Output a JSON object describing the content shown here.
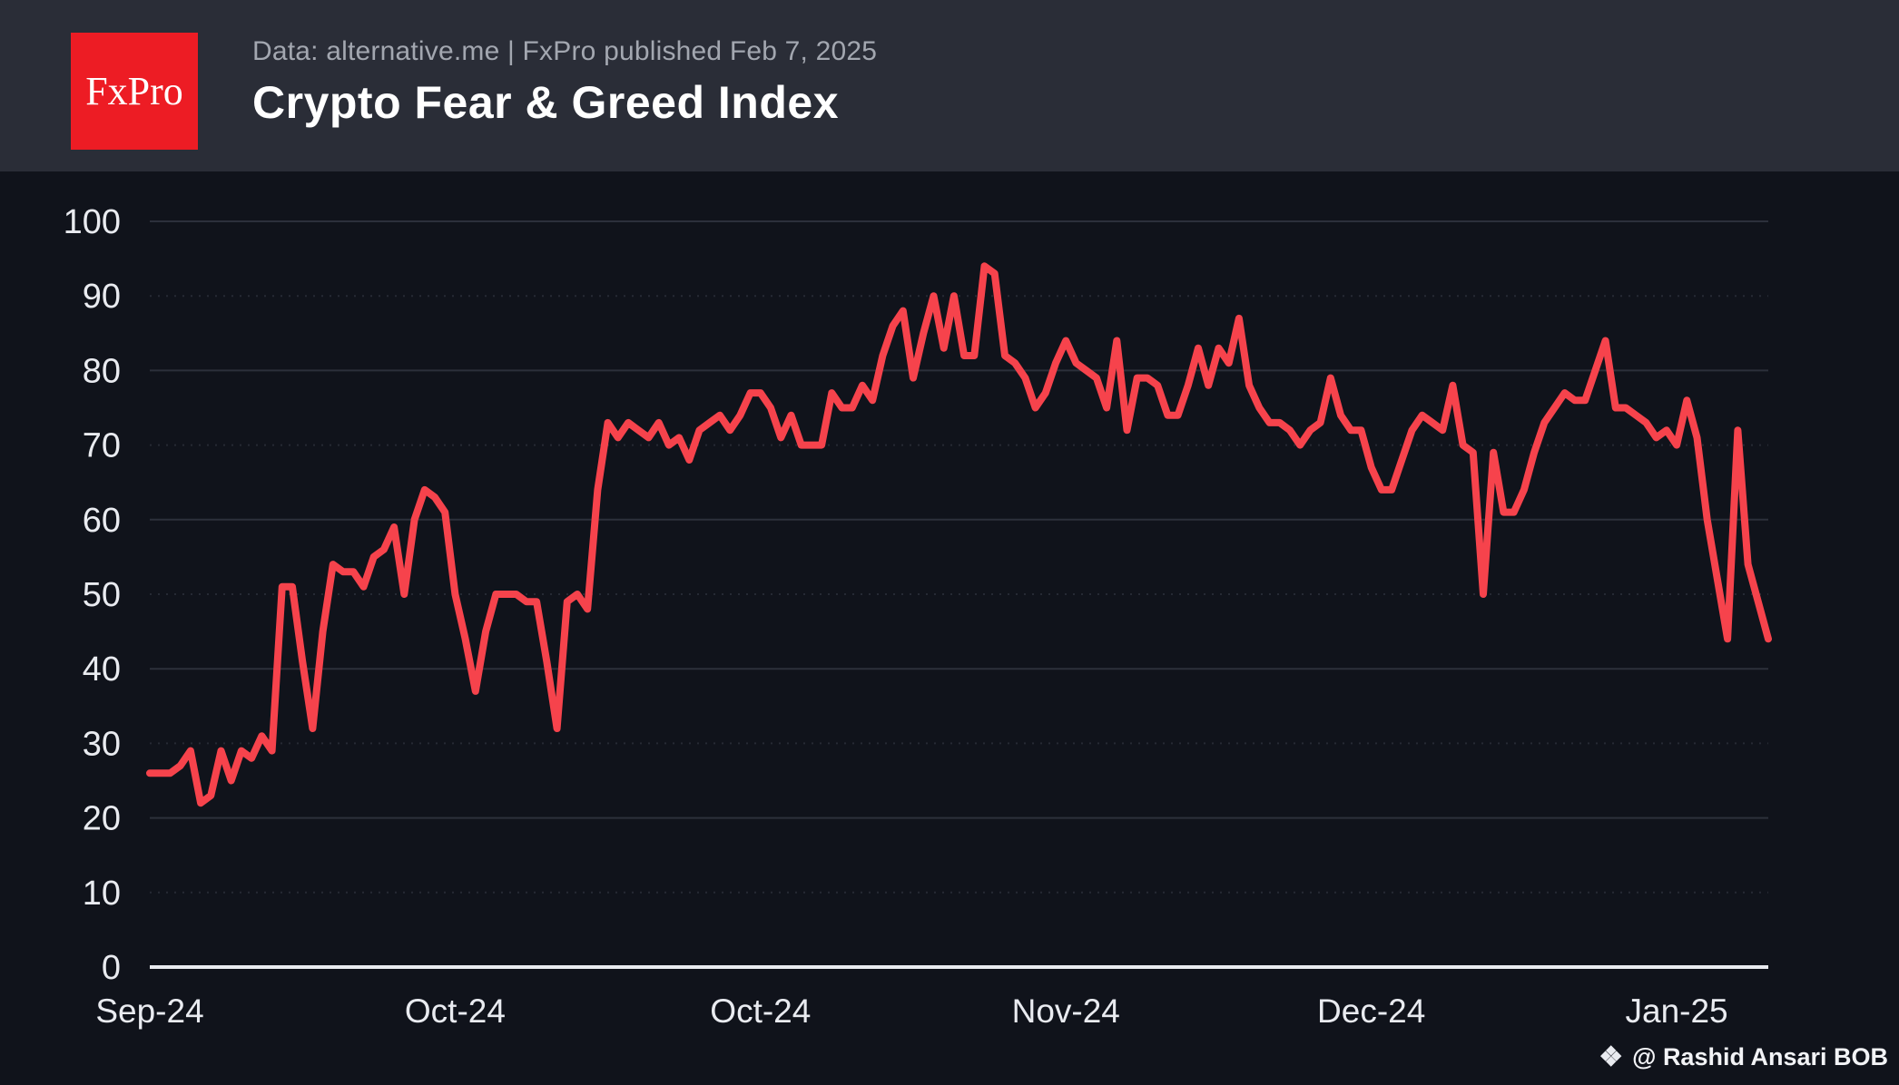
{
  "header": {
    "logo_text": "FxPro",
    "meta_line": "Data: alternative.me  |  FxPro published Feb 7, 2025",
    "title": "Crypto Fear & Greed Index"
  },
  "watermark": {
    "icon_name": "binance-diamond-icon",
    "glyph": "❖",
    "text": "@ Rashid Ansari BOB"
  },
  "colors": {
    "header_bg": "#2a2d37",
    "chart_bg": "#10131b",
    "logo_red": "#ed1c24",
    "line_red": "#f6434c",
    "grid_major": "#2c303b",
    "grid_minor": "#262a34",
    "axis_line": "#e9ebf0",
    "tick_text": "#e9ebf0",
    "meta_text": "#a3a7b0",
    "title_text": "#ffffff"
  },
  "chart_data": {
    "type": "line",
    "title": "Crypto Fear & Greed Index",
    "x_start_date": "2024-09-01",
    "x_end_date": "2025-02-07",
    "frequency": "daily",
    "ylim": [
      0,
      100
    ],
    "y_ticks": [
      0,
      10,
      20,
      30,
      40,
      50,
      60,
      70,
      80,
      90,
      100
    ],
    "grid": "horizontal",
    "legend": "none",
    "x_tick_labels": [
      {
        "day_index": 0,
        "label": "Sep-24"
      },
      {
        "day_index": 30,
        "label": "Oct-24"
      },
      {
        "day_index": 60,
        "label": "Oct-24"
      },
      {
        "day_index": 90,
        "label": "Nov-24"
      },
      {
        "day_index": 120,
        "label": "Dec-24"
      },
      {
        "day_index": 150,
        "label": "Jan-25"
      }
    ],
    "series": [
      {
        "name": "Fear & Greed Index",
        "values": [
          26,
          26,
          26,
          27,
          29,
          22,
          23,
          29,
          25,
          29,
          28,
          31,
          29,
          51,
          51,
          41,
          32,
          45,
          54,
          53,
          53,
          51,
          55,
          56,
          59,
          50,
          60,
          64,
          63,
          61,
          50,
          44,
          37,
          45,
          50,
          50,
          50,
          49,
          49,
          41,
          32,
          49,
          50,
          48,
          64,
          73,
          71,
          73,
          72,
          71,
          73,
          70,
          71,
          68,
          72,
          73,
          74,
          72,
          74,
          77,
          77,
          75,
          71,
          74,
          70,
          70,
          70,
          77,
          75,
          75,
          78,
          76,
          82,
          86,
          88,
          79,
          85,
          90,
          83,
          90,
          82,
          82,
          94,
          93,
          82,
          81,
          79,
          75,
          77,
          81,
          84,
          81,
          80,
          79,
          75,
          84,
          72,
          79,
          79,
          78,
          74,
          74,
          78,
          83,
          78,
          83,
          81,
          87,
          78,
          75,
          73,
          73,
          72,
          70,
          72,
          73,
          79,
          74,
          72,
          72,
          67,
          64,
          64,
          68,
          72,
          74,
          73,
          72,
          78,
          70,
          69,
          50,
          69,
          61,
          61,
          64,
          69,
          73,
          75,
          77,
          76,
          76,
          80,
          84,
          75,
          75,
          74,
          73,
          71,
          72,
          70,
          76,
          71,
          60,
          52,
          44,
          72,
          54,
          49,
          44
        ]
      }
    ]
  }
}
